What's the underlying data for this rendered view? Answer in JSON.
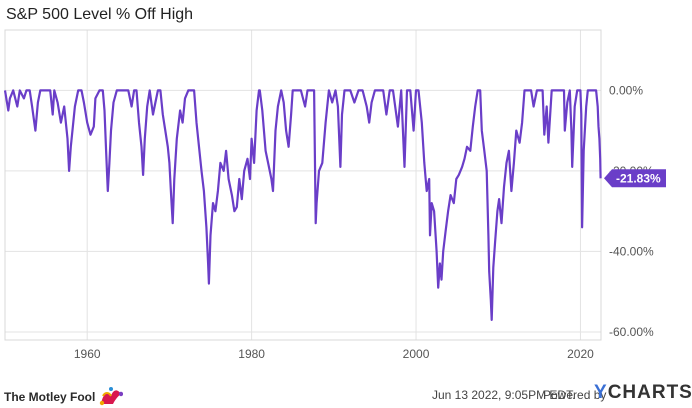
{
  "chart_data": {
    "type": "line",
    "title": "S&P 500 Level % Off High",
    "xlabel": "",
    "ylabel": "",
    "xlim": [
      1950,
      2022.5
    ],
    "ylim": [
      -62,
      15
    ],
    "grid": true,
    "y_ticks": [
      0,
      -20,
      -40,
      -60
    ],
    "y_tick_labels": [
      "0.00%",
      "-20.00%",
      "-40.00%",
      "-60.00%"
    ],
    "x_ticks": [
      1960,
      1980,
      2000,
      2020
    ],
    "x_tick_labels": [
      "1960",
      "1980",
      "2000",
      "2020"
    ],
    "series": [
      {
        "name": "S&P 500 Level % Off High",
        "color": "#6a3ec8",
        "last_value_label": "-21.83%",
        "points": [
          [
            1950.0,
            0
          ],
          [
            1950.4,
            -5
          ],
          [
            1950.6,
            -2
          ],
          [
            1951.0,
            0
          ],
          [
            1951.5,
            -4
          ],
          [
            1951.8,
            0
          ],
          [
            1952.3,
            -2
          ],
          [
            1952.6,
            0
          ],
          [
            1953.0,
            0
          ],
          [
            1953.3,
            -4
          ],
          [
            1953.7,
            -10
          ],
          [
            1954.0,
            -3
          ],
          [
            1954.3,
            0
          ],
          [
            1955.0,
            0
          ],
          [
            1955.5,
            0
          ],
          [
            1955.8,
            -6
          ],
          [
            1956.0,
            0
          ],
          [
            1956.4,
            -3
          ],
          [
            1956.8,
            -8
          ],
          [
            1957.2,
            -4
          ],
          [
            1957.6,
            -12
          ],
          [
            1957.8,
            -20
          ],
          [
            1958.0,
            -14
          ],
          [
            1958.5,
            -4
          ],
          [
            1958.9,
            0
          ],
          [
            1959.3,
            0
          ],
          [
            1959.6,
            -3
          ],
          [
            1960.0,
            -8
          ],
          [
            1960.4,
            -11
          ],
          [
            1960.8,
            -9
          ],
          [
            1961.0,
            -2
          ],
          [
            1961.5,
            0
          ],
          [
            1961.9,
            0
          ],
          [
            1962.1,
            -5
          ],
          [
            1962.3,
            -15
          ],
          [
            1962.5,
            -25
          ],
          [
            1962.7,
            -18
          ],
          [
            1962.9,
            -10
          ],
          [
            1963.2,
            -3
          ],
          [
            1963.6,
            0
          ],
          [
            1964.0,
            0
          ],
          [
            1964.5,
            0
          ],
          [
            1965.0,
            0
          ],
          [
            1965.4,
            -4
          ],
          [
            1965.7,
            0
          ],
          [
            1966.0,
            0
          ],
          [
            1966.3,
            -8
          ],
          [
            1966.6,
            -14
          ],
          [
            1966.8,
            -21
          ],
          [
            1967.0,
            -12
          ],
          [
            1967.3,
            -4
          ],
          [
            1967.6,
            0
          ],
          [
            1968.0,
            -6
          ],
          [
            1968.3,
            -3
          ],
          [
            1968.6,
            0
          ],
          [
            1968.9,
            0
          ],
          [
            1969.2,
            -6
          ],
          [
            1969.5,
            -10
          ],
          [
            1969.8,
            -14
          ],
          [
            1970.0,
            -18
          ],
          [
            1970.2,
            -26
          ],
          [
            1970.4,
            -33
          ],
          [
            1970.6,
            -22
          ],
          [
            1970.9,
            -12
          ],
          [
            1971.3,
            -5
          ],
          [
            1971.6,
            -8
          ],
          [
            1971.9,
            -2
          ],
          [
            1972.3,
            0
          ],
          [
            1972.8,
            0
          ],
          [
            1973.0,
            0
          ],
          [
            1973.3,
            -8
          ],
          [
            1973.6,
            -14
          ],
          [
            1973.9,
            -20
          ],
          [
            1974.2,
            -25
          ],
          [
            1974.5,
            -34
          ],
          [
            1974.7,
            -43
          ],
          [
            1974.8,
            -48
          ],
          [
            1975.0,
            -36
          ],
          [
            1975.3,
            -28
          ],
          [
            1975.6,
            -30
          ],
          [
            1975.9,
            -25
          ],
          [
            1976.2,
            -18
          ],
          [
            1976.6,
            -20
          ],
          [
            1976.9,
            -15
          ],
          [
            1977.2,
            -22
          ],
          [
            1977.6,
            -26
          ],
          [
            1977.9,
            -30
          ],
          [
            1978.2,
            -29
          ],
          [
            1978.5,
            -22
          ],
          [
            1978.8,
            -27
          ],
          [
            1979.1,
            -20
          ],
          [
            1979.5,
            -17
          ],
          [
            1979.8,
            -22
          ],
          [
            1980.0,
            -12
          ],
          [
            1980.3,
            -18
          ],
          [
            1980.6,
            -5
          ],
          [
            1980.9,
            0
          ],
          [
            1981.0,
            0
          ],
          [
            1981.3,
            -5
          ],
          [
            1981.7,
            -15
          ],
          [
            1982.0,
            -18
          ],
          [
            1982.4,
            -22
          ],
          [
            1982.6,
            -25
          ],
          [
            1982.9,
            -10
          ],
          [
            1983.2,
            -4
          ],
          [
            1983.6,
            0
          ],
          [
            1983.9,
            -3
          ],
          [
            1984.2,
            -10
          ],
          [
            1984.5,
            -14
          ],
          [
            1984.8,
            -6
          ],
          [
            1985.0,
            0
          ],
          [
            1985.5,
            0
          ],
          [
            1986.0,
            0
          ],
          [
            1986.5,
            -4
          ],
          [
            1986.8,
            0
          ],
          [
            1987.2,
            0
          ],
          [
            1987.6,
            0
          ],
          [
            1987.8,
            -33
          ],
          [
            1987.9,
            -28
          ],
          [
            1988.2,
            -20
          ],
          [
            1988.6,
            -18
          ],
          [
            1989.0,
            -8
          ],
          [
            1989.4,
            0
          ],
          [
            1989.8,
            -3
          ],
          [
            1990.2,
            0
          ],
          [
            1990.5,
            -4
          ],
          [
            1990.8,
            -19
          ],
          [
            1991.0,
            -6
          ],
          [
            1991.3,
            0
          ],
          [
            1991.7,
            0
          ],
          [
            1992.0,
            0
          ],
          [
            1992.5,
            -3
          ],
          [
            1993.0,
            0
          ],
          [
            1993.5,
            0
          ],
          [
            1994.0,
            -4
          ],
          [
            1994.3,
            -8
          ],
          [
            1994.6,
            -3
          ],
          [
            1995.0,
            0
          ],
          [
            1995.5,
            0
          ],
          [
            1996.0,
            0
          ],
          [
            1996.4,
            -6
          ],
          [
            1996.8,
            0
          ],
          [
            1997.2,
            0
          ],
          [
            1997.8,
            -9
          ],
          [
            1998.2,
            0
          ],
          [
            1998.6,
            -19
          ],
          [
            1998.9,
            0
          ],
          [
            1999.3,
            0
          ],
          [
            1999.7,
            -10
          ],
          [
            2000.0,
            0
          ],
          [
            2000.3,
            0
          ],
          [
            2000.7,
            -8
          ],
          [
            2001.0,
            -18
          ],
          [
            2001.3,
            -25
          ],
          [
            2001.6,
            -22
          ],
          [
            2001.7,
            -36
          ],
          [
            2001.9,
            -28
          ],
          [
            2002.2,
            -30
          ],
          [
            2002.5,
            -40
          ],
          [
            2002.7,
            -49
          ],
          [
            2002.9,
            -43
          ],
          [
            2003.1,
            -47
          ],
          [
            2003.3,
            -40
          ],
          [
            2003.6,
            -35
          ],
          [
            2003.9,
            -30
          ],
          [
            2004.2,
            -26
          ],
          [
            2004.6,
            -28
          ],
          [
            2004.9,
            -22
          ],
          [
            2005.2,
            -21
          ],
          [
            2005.6,
            -19
          ],
          [
            2005.9,
            -17
          ],
          [
            2006.2,
            -14
          ],
          [
            2006.6,
            -15
          ],
          [
            2006.9,
            -9
          ],
          [
            2007.2,
            -4
          ],
          [
            2007.5,
            0
          ],
          [
            2007.8,
            0
          ],
          [
            2008.0,
            -10
          ],
          [
            2008.3,
            -15
          ],
          [
            2008.6,
            -20
          ],
          [
            2008.8,
            -36
          ],
          [
            2008.9,
            -45
          ],
          [
            2009.1,
            -52
          ],
          [
            2009.2,
            -57
          ],
          [
            2009.4,
            -44
          ],
          [
            2009.6,
            -38
          ],
          [
            2009.9,
            -30
          ],
          [
            2010.1,
            -27
          ],
          [
            2010.4,
            -33
          ],
          [
            2010.7,
            -24
          ],
          [
            2011.0,
            -18
          ],
          [
            2011.3,
            -15
          ],
          [
            2011.6,
            -25
          ],
          [
            2011.9,
            -18
          ],
          [
            2012.2,
            -10
          ],
          [
            2012.6,
            -13
          ],
          [
            2012.9,
            -8
          ],
          [
            2013.2,
            0
          ],
          [
            2013.6,
            0
          ],
          [
            2014.0,
            0
          ],
          [
            2014.3,
            -4
          ],
          [
            2014.7,
            0
          ],
          [
            2015.0,
            0
          ],
          [
            2015.4,
            0
          ],
          [
            2015.6,
            -11
          ],
          [
            2015.9,
            -4
          ],
          [
            2016.1,
            -13
          ],
          [
            2016.5,
            0
          ],
          [
            2017.0,
            0
          ],
          [
            2017.5,
            0
          ],
          [
            2018.0,
            0
          ],
          [
            2018.1,
            -10
          ],
          [
            2018.4,
            -3
          ],
          [
            2018.7,
            0
          ],
          [
            2018.9,
            -10
          ],
          [
            2019.0,
            -19
          ],
          [
            2019.3,
            -4
          ],
          [
            2019.6,
            0
          ],
          [
            2020.0,
            0
          ],
          [
            2020.1,
            -6
          ],
          [
            2020.2,
            -34
          ],
          [
            2020.4,
            -15
          ],
          [
            2020.7,
            -4
          ],
          [
            2020.9,
            0
          ],
          [
            2021.2,
            0
          ],
          [
            2021.6,
            0
          ],
          [
            2021.9,
            0
          ],
          [
            2022.1,
            -4
          ],
          [
            2022.2,
            -9
          ],
          [
            2022.3,
            -12
          ],
          [
            2022.4,
            -17
          ],
          [
            2022.45,
            -21.83
          ]
        ]
      }
    ]
  },
  "footer": {
    "brand": "The Motley Fool",
    "timestamp": "Jun 13 2022, 9:05PM EDT.",
    "powered_by": "Powered by",
    "ycharts_y": "Y",
    "ycharts_rest": "CHARTS"
  }
}
